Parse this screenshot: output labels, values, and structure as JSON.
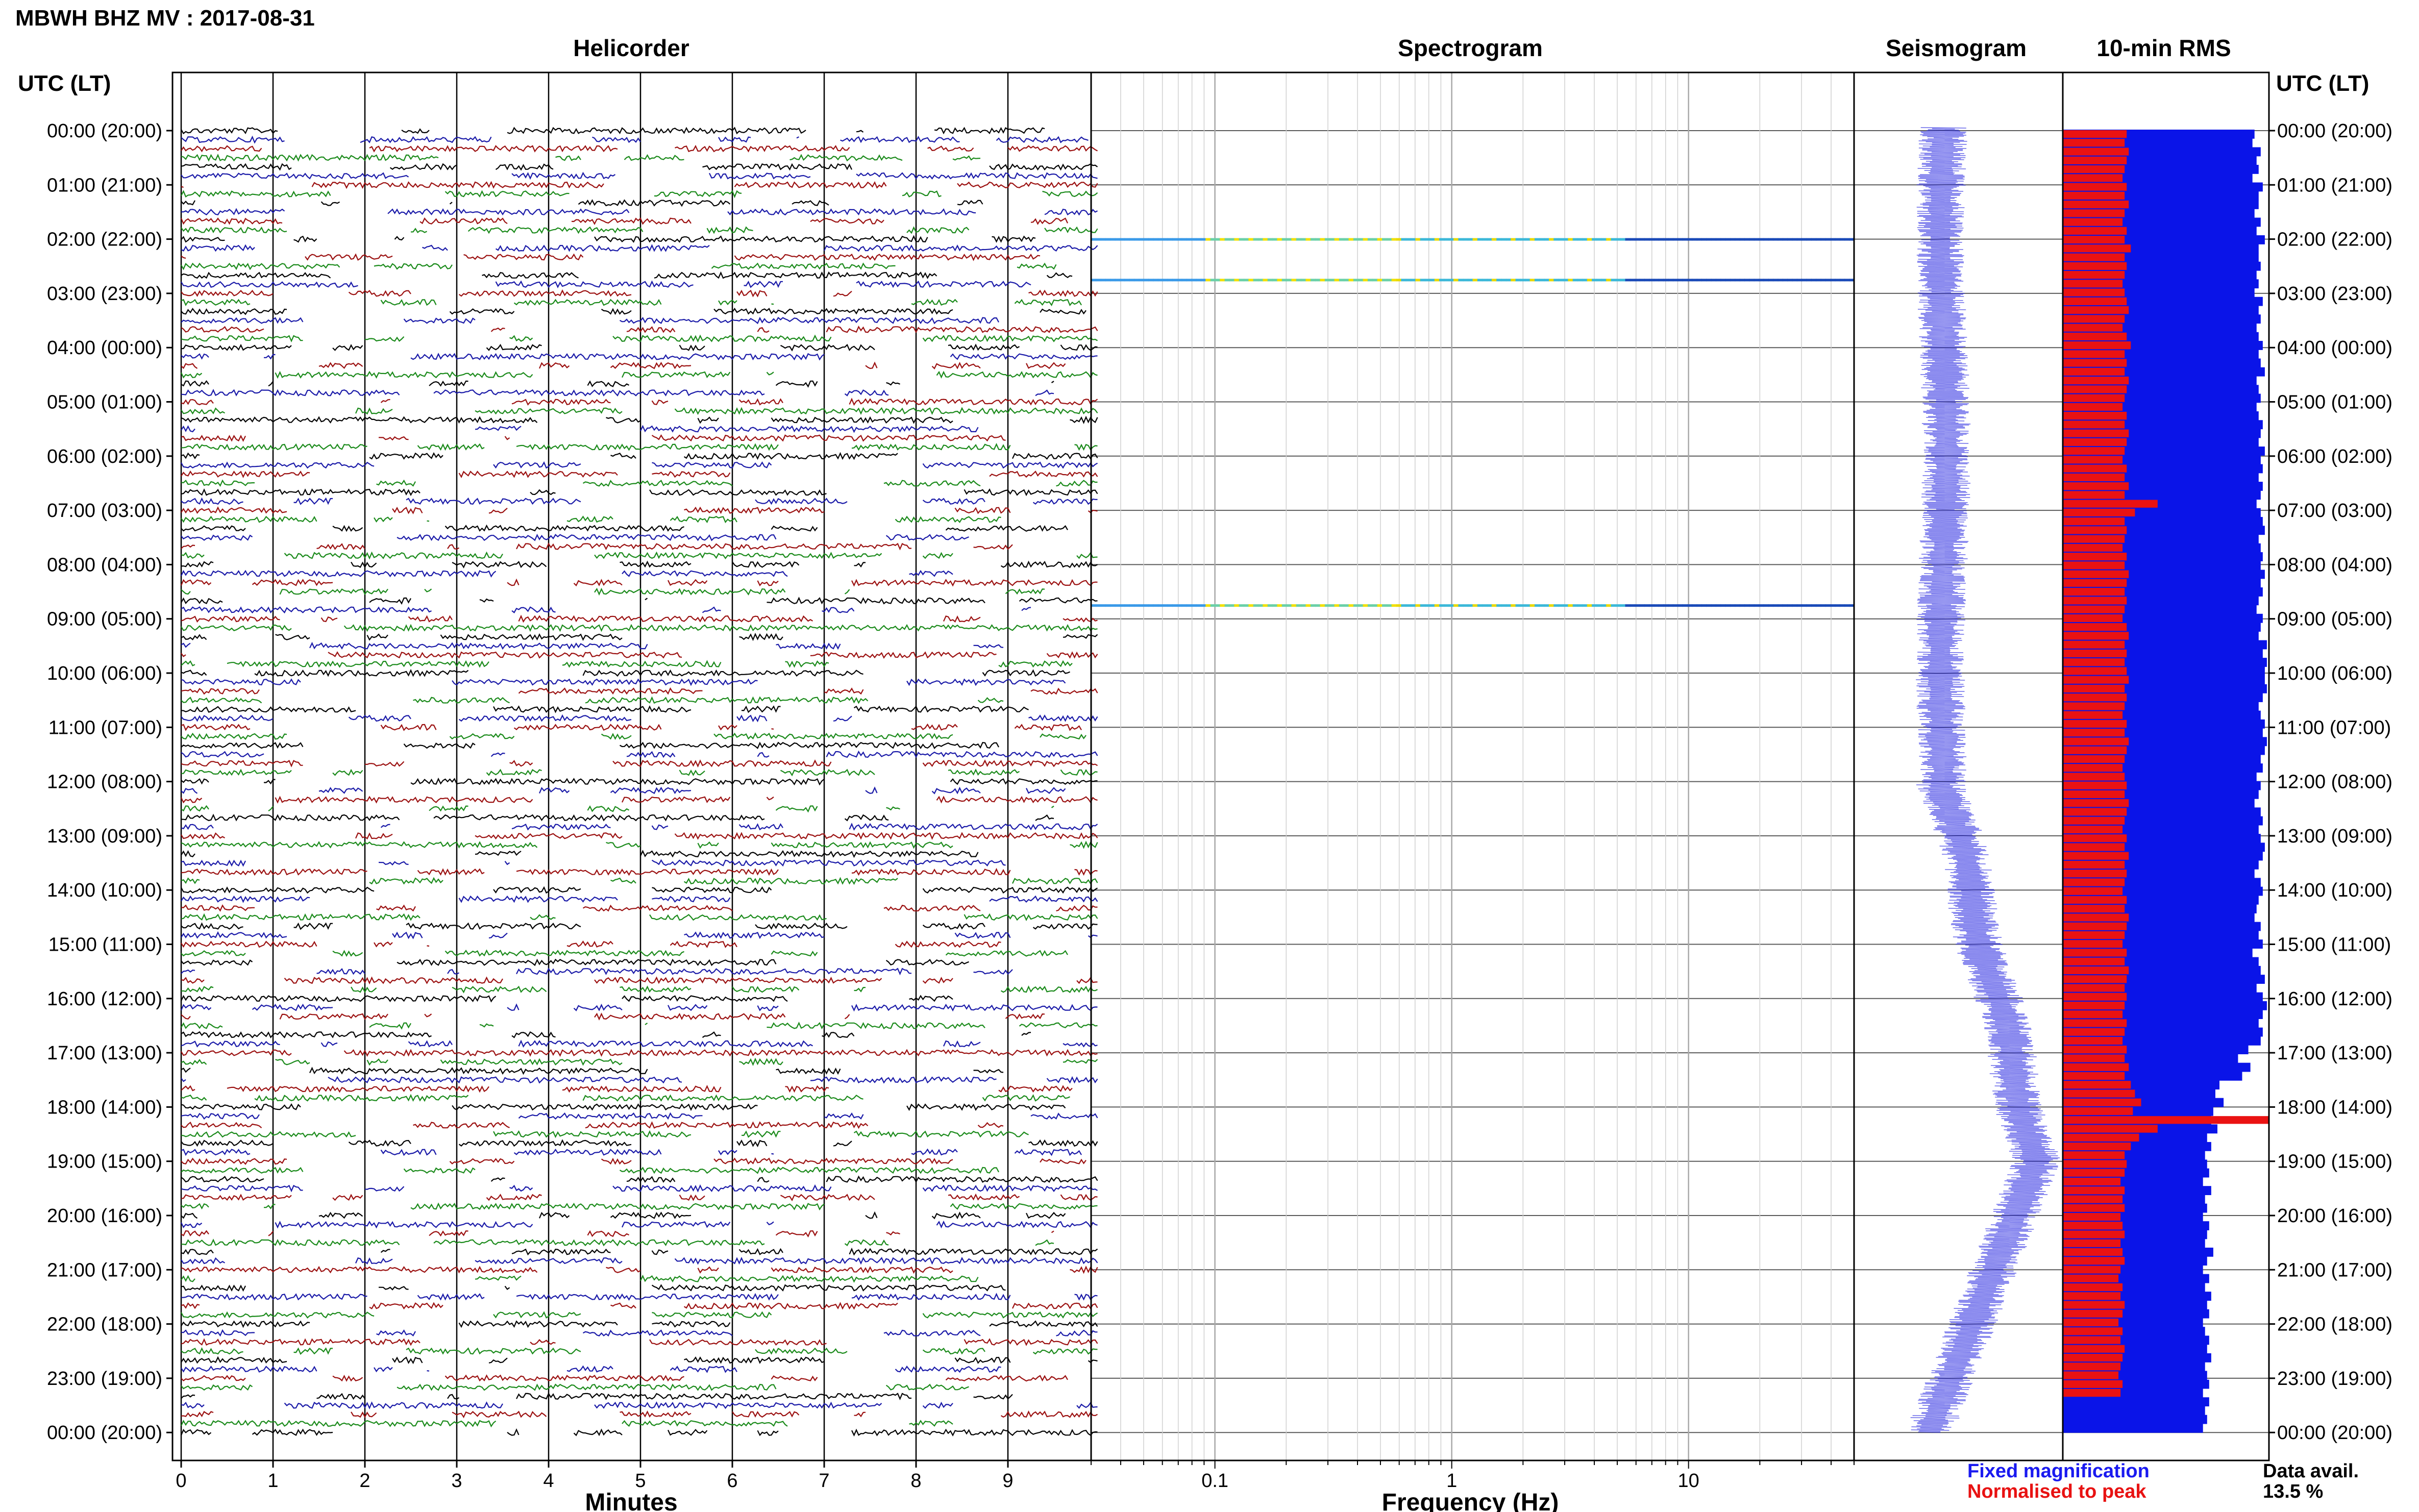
{
  "figure": {
    "title": "MBWH BHZ MV : 2017-08-31",
    "time_axis_label_left": "UTC (LT)",
    "time_axis_label_right": "UTC (LT)",
    "data_avail_label": "Data avail.",
    "data_avail_value": "13.5 %",
    "legend": {
      "fixed": "Fixed magnification",
      "normalised": "Normalised to peak"
    }
  },
  "colors": {
    "frame": "#000000",
    "grid": "#d0d0d0",
    "trace": [
      "#000000",
      "#1a1aa8",
      "#9b1010",
      "#1a8a1a"
    ],
    "seismogram": "#2828e0",
    "rms_fixed": "#0a14e8",
    "rms_normalised": "#ea1212",
    "legend_fixed": "#1a1af0",
    "legend_normalised": "#e81212"
  },
  "chart_data": [
    {
      "type": "line",
      "title": "Helicorder",
      "xlabel": "Minutes",
      "xlim": [
        0,
        10
      ],
      "x_ticks": [
        "0",
        "1",
        "2",
        "3",
        "4",
        "5",
        "6",
        "7",
        "8",
        "9"
      ],
      "row_labels": [
        "00:00 (20:00)",
        "01:00 (21:00)",
        "02:00 (22:00)",
        "03:00 (23:00)",
        "04:00 (00:00)",
        "05:00 (01:00)",
        "06:00 (02:00)",
        "07:00 (03:00)",
        "08:00 (04:00)",
        "09:00 (05:00)",
        "10:00 (06:00)",
        "11:00 (07:00)",
        "12:00 (08:00)",
        "13:00 (09:00)",
        "14:00 (10:00)",
        "15:00 (11:00)",
        "16:00 (12:00)",
        "17:00 (13:00)",
        "18:00 (14:00)",
        "19:00 (15:00)",
        "20:00 (16:00)",
        "21:00 (17:00)",
        "22:00 (18:00)",
        "23:00 (19:00)",
        "00:00 (20:00)"
      ],
      "traces_per_hour": 6,
      "minutes_per_trace": 10
    },
    {
      "type": "heatmap",
      "title": "Spectrogram",
      "xlabel": "Frequency (Hz)",
      "xscale": "log",
      "xlim": [
        0.03,
        50
      ],
      "x_ticks": [
        "0.1",
        "1",
        "10"
      ],
      "bright_rows": [
        "02:00",
        "02:45",
        "08:45"
      ]
    },
    {
      "type": "line",
      "title": "Seismogram"
    },
    {
      "type": "bar",
      "title": "10-min RMS",
      "series": [
        {
          "name": "Fixed magnification",
          "values": [
            0.93,
            0.92,
            0.96,
            0.94,
            0.95,
            0.92,
            0.97,
            0.95,
            0.95,
            0.93,
            0.96,
            0.94,
            0.98,
            0.95,
            0.95,
            0.96,
            0.94,
            0.95,
            0.93,
            0.97,
            0.95,
            0.96,
            0.94,
            0.95,
            0.97,
            0.95,
            0.96,
            0.98,
            0.94,
            0.95,
            0.96,
            0.94,
            0.95,
            0.97,
            0.96,
            0.95,
            0.98,
            0.96,
            0.97,
            0.95,
            0.97,
            0.96,
            0.94,
            0.96,
            0.97,
            0.98,
            0.95,
            0.96,
            0.97,
            0.96,
            0.98,
            0.96,
            0.97,
            0.95,
            0.94,
            0.97,
            0.96,
            0.95,
            0.99,
            0.97,
            0.99,
            0.98,
            0.98,
            0.99,
            0.97,
            0.95,
            0.96,
            0.98,
            0.97,
            0.99,
            0.98,
            0.96,
            0.97,
            0.94,
            0.96,
            0.95,
            0.93,
            0.96,
            0.97,
            0.95,
            0.96,
            0.98,
            0.97,
            0.95,
            0.93,
            0.96,
            0.97,
            0.95,
            0.94,
            0.93,
            0.96,
            0.95,
            0.97,
            0.92,
            0.95,
            0.96,
            0.98,
            0.94,
            0.97,
            0.99,
            0.97,
            0.95,
            0.97,
            0.96,
            0.9,
            0.85,
            0.91,
            0.87,
            0.76,
            0.74,
            0.78,
            0.73,
            0.72,
            0.75,
            0.7,
            0.72,
            0.69,
            0.7,
            0.71,
            0.68,
            0.72,
            0.69,
            0.7,
            0.68,
            0.71,
            0.7,
            0.69,
            0.73,
            0.7,
            0.68,
            0.71,
            0.69,
            0.72,
            0.7,
            0.71,
            0.68,
            0.69,
            0.71,
            0.7,
            0.72,
            0.69,
            0.7,
            0.71,
            0.68,
            0.71,
            0.69,
            0.7,
            0.68
          ]
        },
        {
          "name": "Normalised to peak",
          "values": [
            0.31,
            0.3,
            0.32,
            0.31,
            0.3,
            0.29,
            0.31,
            0.3,
            0.32,
            0.3,
            0.29,
            0.31,
            0.3,
            0.33,
            0.3,
            0.31,
            0.3,
            0.29,
            0.3,
            0.31,
            0.32,
            0.3,
            0.29,
            0.31,
            0.33,
            0.3,
            0.31,
            0.3,
            0.32,
            0.31,
            0.3,
            0.29,
            0.31,
            0.3,
            0.32,
            0.31,
            0.3,
            0.29,
            0.31,
            0.3,
            0.32,
            0.3,
            0.46,
            0.35,
            0.3,
            0.31,
            0.3,
            0.29,
            0.31,
            0.3,
            0.32,
            0.31,
            0.3,
            0.31,
            0.3,
            0.29,
            0.31,
            0.32,
            0.3,
            0.31,
            0.3,
            0.31,
            0.32,
            0.3,
            0.31,
            0.3,
            0.29,
            0.31,
            0.3,
            0.32,
            0.31,
            0.3,
            0.29,
            0.3,
            0.31,
            0.3,
            0.32,
            0.31,
            0.3,
            0.29,
            0.31,
            0.3,
            0.32,
            0.3,
            0.31,
            0.3,
            0.29,
            0.31,
            0.3,
            0.32,
            0.31,
            0.3,
            0.29,
            0.31,
            0.3,
            0.32,
            0.31,
            0.3,
            0.31,
            0.3,
            0.29,
            0.31,
            0.3,
            0.29,
            0.31,
            0.3,
            0.32,
            0.3,
            0.33,
            0.35,
            0.38,
            0.34,
            1.0,
            0.46,
            0.37,
            0.33,
            0.3,
            0.31,
            0.3,
            0.28,
            0.3,
            0.29,
            0.3,
            0.28,
            0.29,
            0.3,
            0.28,
            0.29,
            0.3,
            0.28,
            0.27,
            0.29,
            0.28,
            0.3,
            0.29,
            0.27,
            0.29,
            0.28,
            0.3,
            0.29,
            0.28,
            0.27,
            0.29,
            0.28
          ]
        }
      ]
    }
  ]
}
